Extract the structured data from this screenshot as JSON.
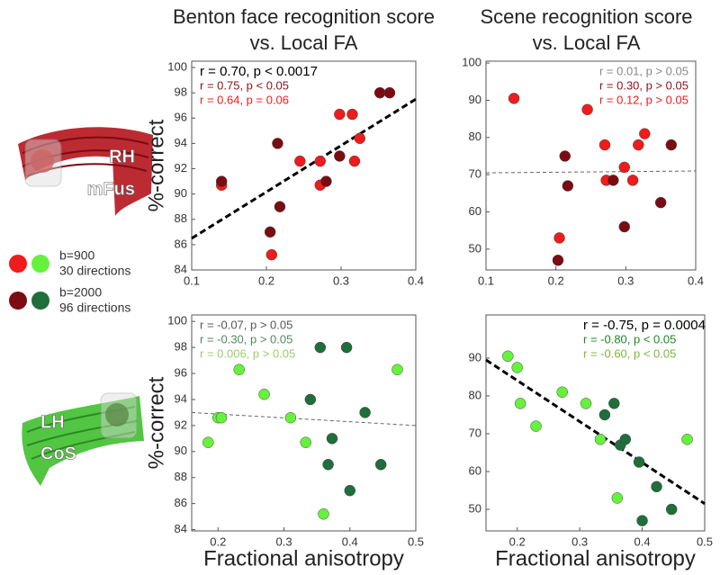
{
  "legend": [
    {
      "colors": [
        "#ee1c1c",
        "#66f23c"
      ],
      "lines": [
        "b=900",
        "30 directions"
      ]
    },
    {
      "colors": [
        "#7a0c12",
        "#1f6e3b"
      ],
      "lines": [
        "b=2000",
        "96 directions"
      ]
    }
  ],
  "tracts": [
    {
      "labels": [
        "RH",
        "mFus"
      ],
      "color": "#b5141c"
    },
    {
      "labels": [
        "LH",
        "CoS"
      ],
      "color": "#3fbf2e"
    }
  ],
  "chart_data": [
    {
      "type": "scatter",
      "title": [
        "Benton face recognition score",
        "vs. Local FA"
      ],
      "ylabel": "%-correct",
      "xlim": [
        0.1,
        0.4
      ],
      "xticks": [
        0.1,
        0.2,
        0.3,
        0.4
      ],
      "ylim": [
        84,
        100.5
      ],
      "yticks": [
        84,
        86,
        88,
        90,
        92,
        94,
        96,
        98,
        100
      ],
      "series": [
        {
          "color": "#ee1c1c",
          "x": [
            0.14,
            0.207,
            0.245,
            0.272,
            0.272,
            0.298,
            0.315,
            0.318,
            0.325
          ],
          "values": [
            90.7,
            85.2,
            92.6,
            92.6,
            90.7,
            96.3,
            96.3,
            92.6,
            94.4
          ]
        },
        {
          "color": "#7a0c12",
          "x": [
            0.14,
            0.205,
            0.215,
            0.218,
            0.28,
            0.298,
            0.352,
            0.365
          ],
          "values": [
            91.0,
            87.0,
            94.0,
            89.0,
            91.0,
            93.0,
            98.0,
            98.0
          ]
        }
      ],
      "fit": {
        "x": [
          0.1,
          0.4
        ],
        "y": [
          86.5,
          97.5
        ],
        "color": "#000000",
        "width": 3
      },
      "annotation_anchor": "upper left",
      "annotations": [
        {
          "text": "r = 0.70, p < 0.0017",
          "color": "#000000"
        },
        {
          "text": "r = 0.75, p < 0.05",
          "color": "#8b1218"
        },
        {
          "text": "r = 0.64, p = 0.06",
          "color": "#ee1c1c"
        }
      ]
    },
    {
      "type": "scatter",
      "title": [
        "Scene recognition score",
        "vs. Local FA"
      ],
      "xlim": [
        0.1,
        0.4
      ],
      "xticks": [
        0.1,
        0.2,
        0.3,
        0.4
      ],
      "ylim": [
        44.4,
        100.5
      ],
      "yticks": [
        50,
        60,
        70,
        80,
        90,
        100
      ],
      "series": [
        {
          "color": "#ee1c1c",
          "x": [
            0.14,
            0.205,
            0.245,
            0.27,
            0.272,
            0.298,
            0.31,
            0.318,
            0.327
          ],
          "values": [
            90.5,
            53,
            87.5,
            78,
            68.5,
            72,
            68.5,
            78,
            81
          ]
        },
        {
          "color": "#7a0c12",
          "x": [
            0.203,
            0.213,
            0.217,
            0.282,
            0.298,
            0.35,
            0.365
          ],
          "values": [
            47,
            75,
            67,
            68.5,
            56,
            62.5,
            78
          ]
        }
      ],
      "fit": {
        "x": [
          0.1,
          0.4
        ],
        "y": [
          70.5,
          71
        ],
        "color": "#666666",
        "width": 1
      },
      "annotation_anchor": "upper right",
      "annotations": [
        {
          "text": "r = 0.01, p > 0.05",
          "color": "#888888"
        },
        {
          "text": "r = 0.30, p > 0.05",
          "color": "#8b1218"
        },
        {
          "text": "r = 0.12, p > 0.05",
          "color": "#ee1c1c"
        }
      ]
    },
    {
      "type": "scatter",
      "ylabel": "%-correct",
      "xlabel": "Fractional anisotropy",
      "xlim": [
        0.16,
        0.5
      ],
      "xticks": [
        0.2,
        0.3,
        0.4,
        0.5
      ],
      "ylim": [
        83.9,
        100.5
      ],
      "yticks": [
        84,
        86,
        88,
        90,
        92,
        94,
        96,
        98,
        100
      ],
      "series": [
        {
          "color": "#66f23c",
          "x": [
            0.185,
            0.2,
            0.205,
            0.232,
            0.27,
            0.31,
            0.333,
            0.36,
            0.472
          ],
          "values": [
            90.7,
            92.6,
            92.6,
            96.3,
            94.4,
            92.6,
            90.7,
            85.2,
            96.3
          ]
        },
        {
          "color": "#1f6e3b",
          "x": [
            0.34,
            0.355,
            0.367,
            0.373,
            0.395,
            0.4,
            0.423,
            0.447
          ],
          "values": [
            94.0,
            98.0,
            89.0,
            91.0,
            98.0,
            87.0,
            93.0,
            89.0
          ]
        }
      ],
      "fit": {
        "x": [
          0.16,
          0.5
        ],
        "y": [
          93.0,
          92.0
        ],
        "color": "#666666",
        "width": 1
      },
      "annotation_anchor": "upper left",
      "annotations": [
        {
          "text": "r = -0.07, p > 0.05",
          "color": "#555555"
        },
        {
          "text": "r = -0.30, p > 0.05",
          "color": "#4d8a5e"
        },
        {
          "text": "r = 0.006, p > 0.05",
          "color": "#9acd6a"
        }
      ]
    },
    {
      "type": "scatter",
      "xlabel": "Fractional anisotropy",
      "xlim": [
        0.15,
        0.5
      ],
      "xticks": [
        0.2,
        0.3,
        0.4,
        0.5
      ],
      "ylim": [
        44.3,
        101.4
      ],
      "yticks": [
        50,
        60,
        70,
        80,
        90
      ],
      "series": [
        {
          "color": "#66f23c",
          "x": [
            0.185,
            0.2,
            0.205,
            0.23,
            0.272,
            0.31,
            0.333,
            0.36,
            0.472
          ],
          "values": [
            90.5,
            87.5,
            78,
            72,
            81,
            78,
            68.5,
            53,
            68.5
          ]
        },
        {
          "color": "#1f6e3b",
          "x": [
            0.34,
            0.355,
            0.365,
            0.373,
            0.395,
            0.4,
            0.423,
            0.447
          ],
          "values": [
            75,
            78,
            67,
            68.5,
            62.5,
            47,
            56,
            50
          ]
        }
      ],
      "fit": {
        "x": [
          0.15,
          0.5
        ],
        "y": [
          89.5,
          51.5
        ],
        "color": "#000000",
        "width": 3
      },
      "annotation_anchor": "upper middle",
      "annotations": [
        {
          "text": "r = -0.75, p = 0.0004",
          "color": "#000000"
        },
        {
          "text": "r = -0.80, p < 0.05",
          "color": "#1e8a1e"
        },
        {
          "text": "r = -0.60, p < 0.05",
          "color": "#7ab83a"
        }
      ]
    }
  ]
}
